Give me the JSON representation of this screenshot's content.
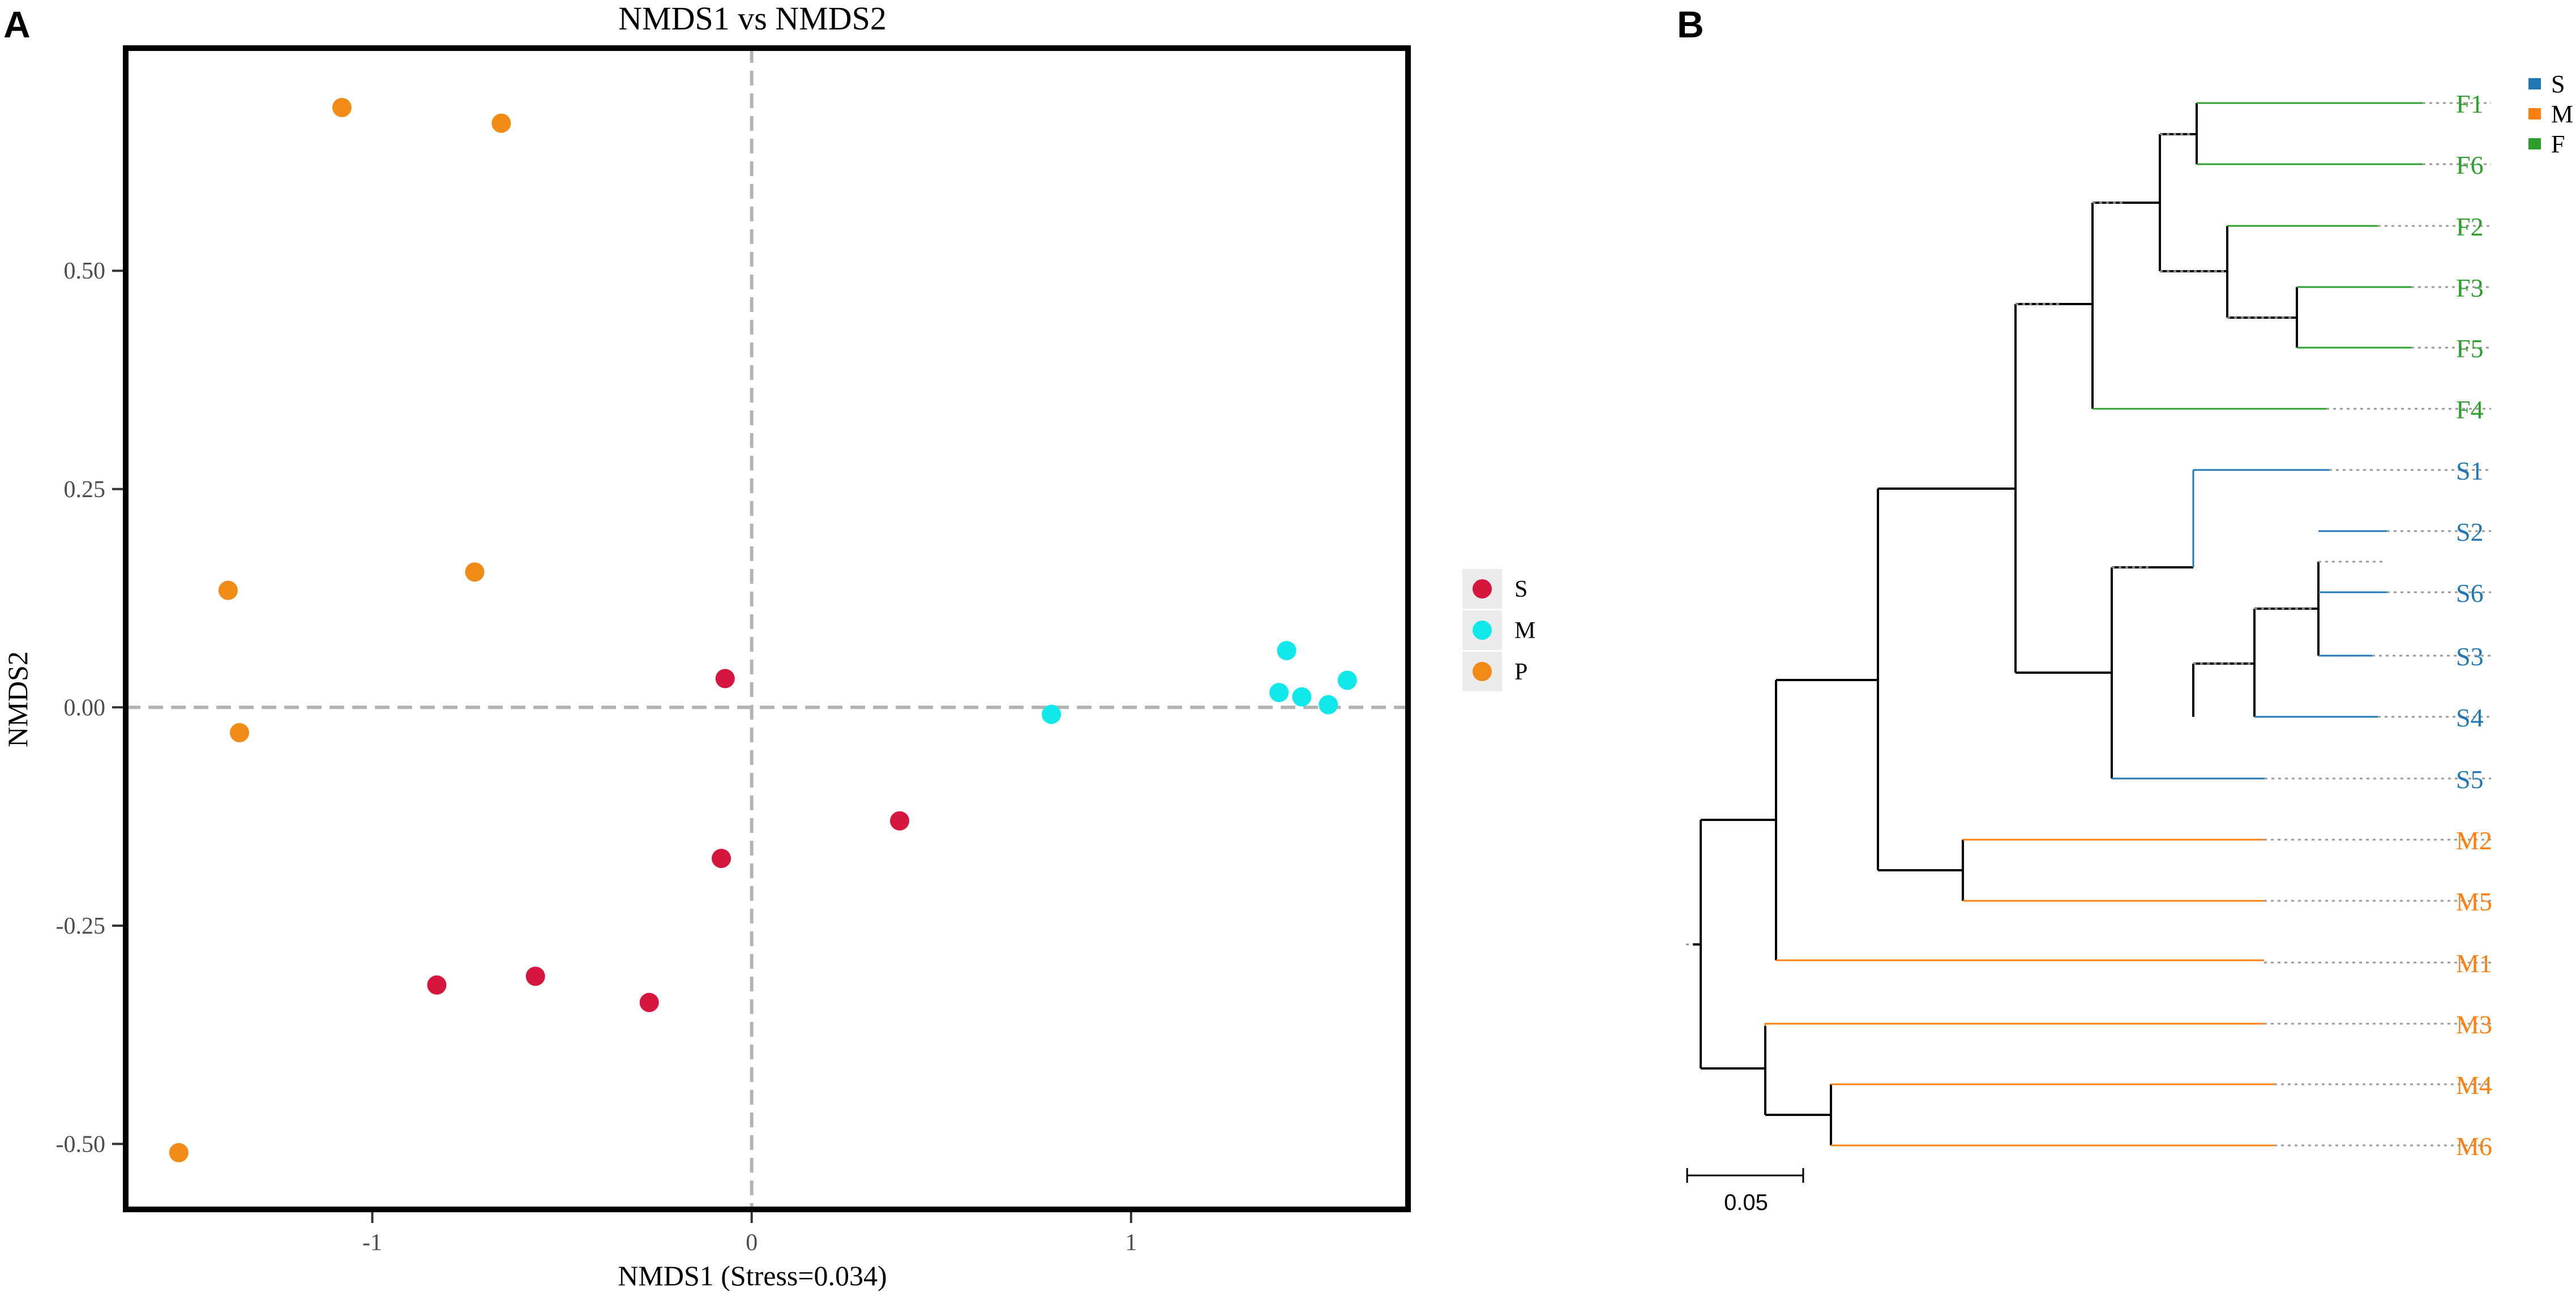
{
  "panels": {
    "left_label": "A",
    "right_label": "B"
  },
  "chart_data": [
    {
      "type": "scatter",
      "title": "NMDS1 vs NMDS2",
      "xlabel": "NMDS1 (Stress=0.034)",
      "ylabel": "NMDS2",
      "xlim": [
        -1.65,
        1.73
      ],
      "ylim": [
        -0.575,
        0.755
      ],
      "xticks": [
        -1,
        0,
        1
      ],
      "xtick_labels": [
        "-1",
        "0",
        "1"
      ],
      "yticks": [
        -0.5,
        -0.25,
        0,
        0.25,
        0.5
      ],
      "ytick_labels": [
        "-0.50",
        "-0.25",
        "0.00",
        "0.25",
        "0.50"
      ],
      "reference_lines": {
        "x": 0,
        "y": 0,
        "style": "dashed",
        "color": "#b3b3b3"
      },
      "legend_position": "right",
      "series": [
        {
          "name": "S",
          "color": "#d6163f",
          "points": [
            [
              -0.07,
              0.033
            ],
            [
              0.39,
              -0.13
            ],
            [
              -0.08,
              -0.173
            ],
            [
              -0.83,
              -0.318
            ],
            [
              -0.57,
              -0.308
            ],
            [
              -0.27,
              -0.338
            ]
          ]
        },
        {
          "name": "M",
          "color": "#11e8ea",
          "points": [
            [
              0.79,
              -0.008
            ],
            [
              1.41,
              0.065
            ],
            [
              1.39,
              0.017
            ],
            [
              1.45,
              0.012
            ],
            [
              1.52,
              0.003
            ],
            [
              1.57,
              0.031
            ]
          ]
        },
        {
          "name": "P",
          "color": "#f28a18",
          "points": [
            [
              -1.08,
              0.687
            ],
            [
              -0.66,
              0.669
            ],
            [
              -1.38,
              0.134
            ],
            [
              -0.73,
              0.155
            ],
            [
              -1.35,
              -0.029
            ],
            [
              -1.51,
              -0.51
            ]
          ]
        }
      ]
    },
    {
      "type": "dendrogram",
      "scale_bar_label": "0.05",
      "scale_bar_value": 0.05,
      "legend": [
        {
          "name": "S",
          "color": "#1f77b4"
        },
        {
          "name": "M",
          "color": "#ff7f0e"
        },
        {
          "name": "F",
          "color": "#2ca02c"
        }
      ],
      "leaves": [
        {
          "label": "F1",
          "group": "F",
          "color": "#2ca02c"
        },
        {
          "label": "F6",
          "group": "F",
          "color": "#2ca02c"
        },
        {
          "label": "F2",
          "group": "F",
          "color": "#2ca02c"
        },
        {
          "label": "F3",
          "group": "F",
          "color": "#2ca02c"
        },
        {
          "label": "F5",
          "group": "F",
          "color": "#2ca02c"
        },
        {
          "label": "F4",
          "group": "F",
          "color": "#2ca02c"
        },
        {
          "label": "S1",
          "group": "S",
          "color": "#1f77b4"
        },
        {
          "label": "S2",
          "group": "S",
          "color": "#1f77b4"
        },
        {
          "label": "S6",
          "group": "S",
          "color": "#1f77b4"
        },
        {
          "label": "S3",
          "group": "S",
          "color": "#1f77b4"
        },
        {
          "label": "S4",
          "group": "S",
          "color": "#1f77b4"
        },
        {
          "label": "S5",
          "group": "S",
          "color": "#1f77b4"
        },
        {
          "label": "M2",
          "group": "M",
          "color": "#ff7f0e"
        },
        {
          "label": "M5",
          "group": "M",
          "color": "#ff7f0e"
        },
        {
          "label": "M1",
          "group": "M",
          "color": "#ff7f0e"
        },
        {
          "label": "M3",
          "group": "M",
          "color": "#ff7f0e"
        },
        {
          "label": "M4",
          "group": "M",
          "color": "#ff7f0e"
        },
        {
          "label": "M6",
          "group": "M",
          "color": "#ff7f0e"
        }
      ]
    }
  ]
}
